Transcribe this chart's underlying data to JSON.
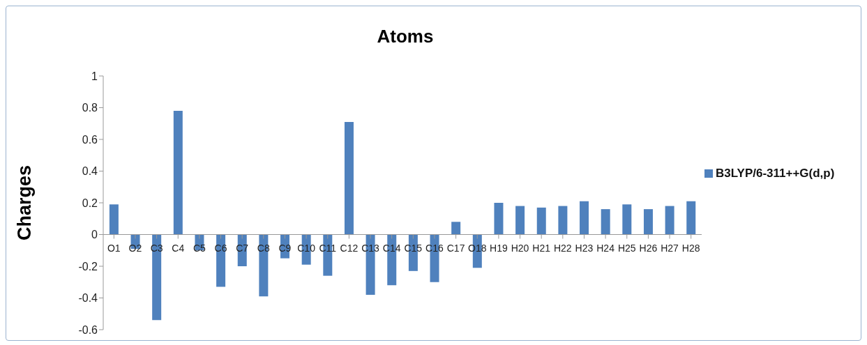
{
  "chart_data": {
    "type": "bar",
    "title": "Atoms",
    "ylabel": "Charges",
    "categories": [
      "O1",
      "O2",
      "C3",
      "C4",
      "C5",
      "C6",
      "C7",
      "C8",
      "C9",
      "C10",
      "C11",
      "C12",
      "C13",
      "C14",
      "C15",
      "C16",
      "C17",
      "O18",
      "H19",
      "H20",
      "H21",
      "H22",
      "H23",
      "H24",
      "H25",
      "H26",
      "H27",
      "H28"
    ],
    "series": [
      {
        "name": "B3LYP/6-311++G(d,p)",
        "color": "#4f81bd",
        "values": [
          0.19,
          -0.09,
          -0.54,
          0.78,
          -0.1,
          -0.33,
          -0.2,
          -0.39,
          -0.15,
          -0.19,
          -0.26,
          0.71,
          -0.38,
          -0.32,
          -0.23,
          -0.3,
          0.08,
          -0.21,
          0.2,
          0.18,
          0.17,
          0.18,
          0.21,
          0.16,
          0.19,
          0.16,
          0.18,
          0.21
        ]
      }
    ],
    "ylim": [
      -0.6,
      1
    ],
    "yticks": [
      -0.6,
      -0.4,
      -0.2,
      0,
      0.2,
      0.4,
      0.6,
      0.8,
      1
    ],
    "grid": false,
    "legend": "right"
  }
}
